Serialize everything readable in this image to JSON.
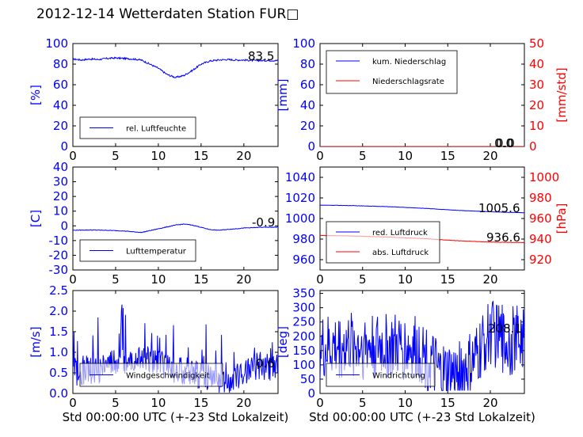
{
  "title": "2012-12-14 Wetterdaten Station FUR□",
  "colors": {
    "left_axis": "#0000ff",
    "right_axis": "#ff0000",
    "line_blue": "#0000ff",
    "line_red": "#ff0000",
    "text": "#000000"
  },
  "chart_data": [
    {
      "id": "humidity",
      "type": "line",
      "ylabel": "[%]",
      "xlim": [
        0,
        24
      ],
      "ylim": [
        0,
        100
      ],
      "xticks": [
        0,
        5,
        10,
        15,
        20
      ],
      "yticks": [
        0,
        20,
        40,
        60,
        80,
        100
      ],
      "series": [
        {
          "name": "rel. Luftfeuchte",
          "axis": "left",
          "color": "#0000ff",
          "noise": 0.8,
          "points": [
            [
              0,
              85
            ],
            [
              1,
              84
            ],
            [
              2,
              85
            ],
            [
              3,
              84.5
            ],
            [
              4,
              85.5
            ],
            [
              5,
              86
            ],
            [
              6,
              85.5
            ],
            [
              7,
              85
            ],
            [
              8,
              84
            ],
            [
              9,
              80
            ],
            [
              10,
              76
            ],
            [
              11,
              70
            ],
            [
              12,
              67
            ],
            [
              13,
              69
            ],
            [
              14,
              74
            ],
            [
              15,
              80
            ],
            [
              16,
              83
            ],
            [
              17,
              84
            ],
            [
              18,
              84.5
            ],
            [
              19,
              84
            ],
            [
              20,
              84
            ],
            [
              21,
              83.5
            ],
            [
              22,
              83.5
            ],
            [
              23,
              83.5
            ],
            [
              24,
              83.5
            ]
          ]
        }
      ],
      "value_label": "83.5",
      "legend_position": "lower-left",
      "grid": false
    },
    {
      "id": "precip",
      "type": "line",
      "ylabel": "[mm]",
      "ylabel_right": "[mm/std]",
      "xlim": [
        0,
        24
      ],
      "ylim": [
        0,
        100
      ],
      "ylim_right": [
        0,
        50
      ],
      "xticks": [
        0,
        5,
        10,
        15,
        20
      ],
      "yticks": [
        0,
        20,
        40,
        60,
        80,
        100
      ],
      "yticks_right": [
        0,
        10,
        20,
        30,
        40,
        50
      ],
      "series": [
        {
          "name": "kum. Niederschlag",
          "axis": "left",
          "color": "#0000ff",
          "noise": 0,
          "points": [
            [
              0,
              0
            ],
            [
              24,
              0
            ]
          ]
        },
        {
          "name": "Niederschlagsrate",
          "axis": "right",
          "color": "#ff0000",
          "noise": 0,
          "points": [
            [
              0,
              0
            ],
            [
              24,
              0
            ]
          ]
        }
      ],
      "value_label": "0.0",
      "value_label_2": "0.0",
      "legend_position": "upper-left",
      "grid": false
    },
    {
      "id": "temperature",
      "type": "line",
      "ylabel": "[C]",
      "xlim": [
        0,
        24
      ],
      "ylim": [
        -30,
        40
      ],
      "xticks": [
        0,
        5,
        10,
        15,
        20
      ],
      "yticks": [
        -30,
        -20,
        -10,
        0,
        10,
        20,
        30,
        40
      ],
      "series": [
        {
          "name": "Lufttemperatur",
          "axis": "left",
          "color": "#0000ff",
          "noise": 0.2,
          "points": [
            [
              0,
              -3
            ],
            [
              2,
              -2.8
            ],
            [
              4,
              -3
            ],
            [
              6,
              -3.5
            ],
            [
              8,
              -4.5
            ],
            [
              10,
              -2
            ],
            [
              12,
              0.5
            ],
            [
              13,
              1.2
            ],
            [
              14,
              0.5
            ],
            [
              16,
              -2.5
            ],
            [
              17,
              -3
            ],
            [
              18,
              -2.5
            ],
            [
              20,
              -1.5
            ],
            [
              22,
              -1
            ],
            [
              24,
              -0.9
            ]
          ]
        }
      ],
      "value_label": "-0.9",
      "legend_position": "lower-left",
      "grid": false
    },
    {
      "id": "pressure",
      "type": "line",
      "ylabel_right": "[hPa]",
      "xlim": [
        0,
        24
      ],
      "ylim": [
        950,
        1050
      ],
      "ylim_right": [
        910,
        1010
      ],
      "xticks": [
        0,
        5,
        10,
        15,
        20
      ],
      "yticks": [
        960,
        980,
        1000,
        1020,
        1040
      ],
      "yticks_right": [
        920,
        940,
        960,
        980,
        1000
      ],
      "series": [
        {
          "name": "red. Luftdruck",
          "axis": "left",
          "color": "#0000ff",
          "noise": 0.15,
          "points": [
            [
              0,
              1013
            ],
            [
              4,
              1012.5
            ],
            [
              8,
              1011.5
            ],
            [
              12,
              1010
            ],
            [
              16,
              1008
            ],
            [
              20,
              1006.5
            ],
            [
              24,
              1005.6
            ]
          ]
        },
        {
          "name": "abs. Luftdruck",
          "axis": "right",
          "color": "#ff0000",
          "noise": 0.15,
          "points": [
            [
              0,
              943.5
            ],
            [
              4,
              943
            ],
            [
              8,
              942
            ],
            [
              12,
              940.5
            ],
            [
              16,
              938.5
            ],
            [
              20,
              937
            ],
            [
              24,
              936.6
            ]
          ]
        }
      ],
      "value_label": "1005.6",
      "value_label_2": "936.6",
      "legend_position": "lower-left",
      "grid": false
    },
    {
      "id": "windspeed",
      "type": "line",
      "ylabel": "[m/s]",
      "xlabel": "Std 00:00:00 UTC (+-23 Std Lokalzeit)",
      "xlim": [
        0,
        24
      ],
      "ylim": [
        0,
        2.5
      ],
      "xticks": [
        0,
        5,
        10,
        15,
        20
      ],
      "yticks": [
        0,
        0.5,
        1.0,
        1.5,
        2.0,
        2.5
      ],
      "series": [
        {
          "name": "Windgeschwindigkeit",
          "axis": "left",
          "color": "#0000ff",
          "noise": 0.35,
          "points": [
            [
              0,
              0.5
            ],
            [
              3,
              0.6
            ],
            [
              6,
              0.8
            ],
            [
              8,
              0.9
            ],
            [
              10,
              0.7
            ],
            [
              12,
              0.6
            ],
            [
              14,
              0.5
            ],
            [
              16,
              0.4
            ],
            [
              18,
              0.3
            ],
            [
              20,
              0.5
            ],
            [
              22,
              0.7
            ],
            [
              24,
              0.6
            ]
          ]
        }
      ],
      "value_label": "0.6",
      "legend_position": "lower-left",
      "grid": false
    },
    {
      "id": "winddir",
      "type": "line",
      "ylabel": "[deg]",
      "xlabel": "Std 00:00:00 UTC (+-23 Std Lokalzeit)",
      "xlim": [
        0,
        24
      ],
      "ylim": [
        0,
        360
      ],
      "xticks": [
        0,
        5,
        10,
        15,
        20
      ],
      "yticks": [
        0,
        50,
        100,
        150,
        200,
        250,
        300,
        350
      ],
      "series": [
        {
          "name": "Windrichtung",
          "axis": "left",
          "color": "#0000ff",
          "noise": 120,
          "points": [
            [
              0,
              150
            ],
            [
              4,
              170
            ],
            [
              8,
              160
            ],
            [
              12,
              150
            ],
            [
              14,
              60
            ],
            [
              16,
              60
            ],
            [
              18,
              100
            ],
            [
              20,
              220
            ],
            [
              22,
              180
            ],
            [
              24,
              200
            ]
          ]
        }
      ],
      "value_label": "208.1",
      "legend_position": "lower-left",
      "grid": false
    }
  ]
}
